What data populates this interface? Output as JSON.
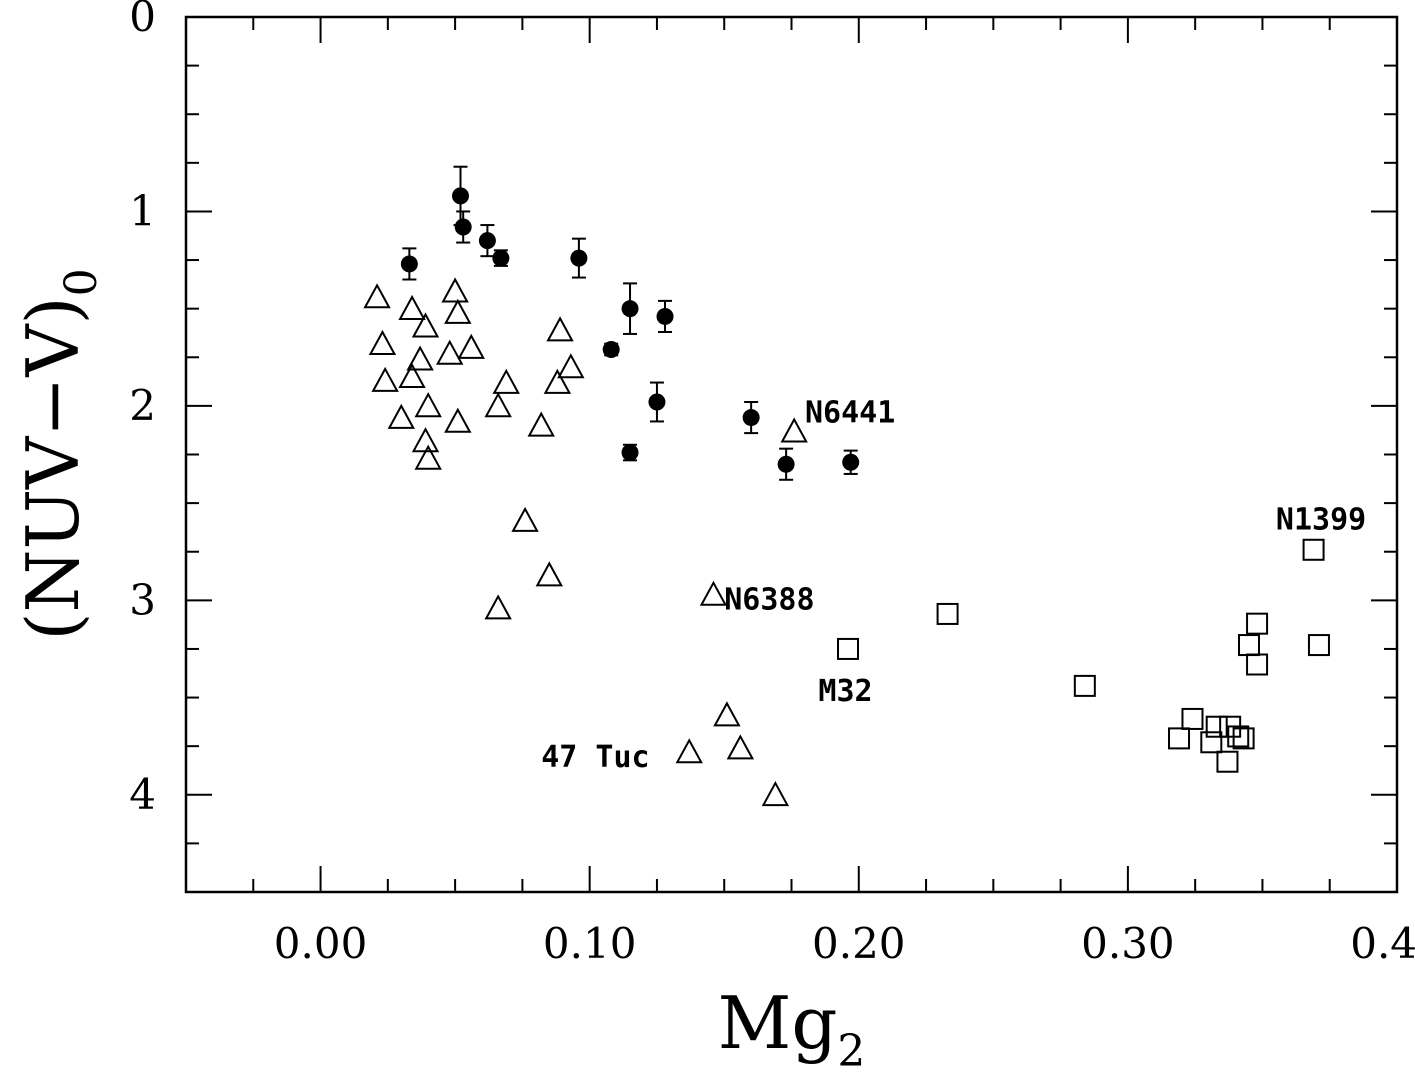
{
  "chart_data": {
    "type": "scatter",
    "xlabel": {
      "main": "Mg",
      "sub": "2"
    },
    "ylabel": {
      "main": "(NUV−V)",
      "sub": "0"
    },
    "xlim": [
      -0.05,
      0.4
    ],
    "ylim": [
      4.5,
      0
    ],
    "x_ticks": [
      {
        "value": 0.0,
        "label": "0.00"
      },
      {
        "value": 0.1,
        "label": "0.10"
      },
      {
        "value": 0.2,
        "label": "0.20"
      },
      {
        "value": 0.3,
        "label": "0.30"
      },
      {
        "value": 0.4,
        "label": "0.40"
      }
    ],
    "y_ticks": [
      {
        "value": 0,
        "label": "0"
      },
      {
        "value": 1,
        "label": "1"
      },
      {
        "value": 2,
        "label": "2"
      },
      {
        "value": 3,
        "label": "3"
      },
      {
        "value": 4,
        "label": "4"
      }
    ],
    "x_minor_step": 0.025,
    "y_minor_step": 0.25,
    "grid": false,
    "series": [
      {
        "marker": "filled-circle-errorbar",
        "points": [
          {
            "x": 0.033,
            "y": 1.27,
            "err": 0.08
          },
          {
            "x": 0.052,
            "y": 0.92,
            "err": 0.15
          },
          {
            "x": 0.053,
            "y": 1.08,
            "err": 0.08
          },
          {
            "x": 0.062,
            "y": 1.15,
            "err": 0.08
          },
          {
            "x": 0.067,
            "y": 1.24,
            "err": 0.04
          },
          {
            "x": 0.096,
            "y": 1.24,
            "err": 0.1
          },
          {
            "x": 0.108,
            "y": 1.71,
            "err": 0.03
          },
          {
            "x": 0.115,
            "y": 1.5,
            "err": 0.13
          },
          {
            "x": 0.128,
            "y": 1.54,
            "err": 0.08
          },
          {
            "x": 0.125,
            "y": 1.98,
            "err": 0.1
          },
          {
            "x": 0.115,
            "y": 2.24,
            "err": 0.04
          },
          {
            "x": 0.16,
            "y": 2.06,
            "err": 0.08
          },
          {
            "x": 0.173,
            "y": 2.3,
            "err": 0.08
          },
          {
            "x": 0.197,
            "y": 2.29,
            "err": 0.06
          }
        ]
      },
      {
        "marker": "open-triangle",
        "points": [
          {
            "x": 0.021,
            "y": 1.45
          },
          {
            "x": 0.023,
            "y": 1.69
          },
          {
            "x": 0.024,
            "y": 1.88
          },
          {
            "x": 0.03,
            "y": 2.07
          },
          {
            "x": 0.034,
            "y": 1.51
          },
          {
            "x": 0.034,
            "y": 1.86
          },
          {
            "x": 0.037,
            "y": 1.77
          },
          {
            "x": 0.039,
            "y": 1.6
          },
          {
            "x": 0.04,
            "y": 2.01
          },
          {
            "x": 0.039,
            "y": 2.19
          },
          {
            "x": 0.04,
            "y": 2.28
          },
          {
            "x": 0.048,
            "y": 1.74
          },
          {
            "x": 0.05,
            "y": 1.42
          },
          {
            "x": 0.051,
            "y": 1.53
          },
          {
            "x": 0.051,
            "y": 2.09
          },
          {
            "x": 0.056,
            "y": 1.71
          },
          {
            "x": 0.066,
            "y": 2.01
          },
          {
            "x": 0.069,
            "y": 1.89
          },
          {
            "x": 0.066,
            "y": 3.05
          },
          {
            "x": 0.076,
            "y": 2.6
          },
          {
            "x": 0.082,
            "y": 2.11
          },
          {
            "x": 0.085,
            "y": 2.88
          },
          {
            "x": 0.088,
            "y": 1.89
          },
          {
            "x": 0.089,
            "y": 1.62
          },
          {
            "x": 0.093,
            "y": 1.81
          },
          {
            "x": 0.137,
            "y": 3.79
          },
          {
            "x": 0.146,
            "y": 2.98
          },
          {
            "x": 0.151,
            "y": 3.6
          },
          {
            "x": 0.156,
            "y": 3.77
          },
          {
            "x": 0.169,
            "y": 4.01
          },
          {
            "x": 0.176,
            "y": 2.14
          }
        ]
      },
      {
        "marker": "open-square",
        "points": [
          {
            "x": 0.196,
            "y": 3.25
          },
          {
            "x": 0.233,
            "y": 3.07
          },
          {
            "x": 0.284,
            "y": 3.44
          },
          {
            "x": 0.319,
            "y": 3.71
          },
          {
            "x": 0.324,
            "y": 3.61
          },
          {
            "x": 0.331,
            "y": 3.73
          },
          {
            "x": 0.333,
            "y": 3.65
          },
          {
            "x": 0.337,
            "y": 3.83
          },
          {
            "x": 0.338,
            "y": 3.65
          },
          {
            "x": 0.341,
            "y": 3.7
          },
          {
            "x": 0.343,
            "y": 3.71
          },
          {
            "x": 0.345,
            "y": 3.23
          },
          {
            "x": 0.348,
            "y": 3.12
          },
          {
            "x": 0.348,
            "y": 3.33
          },
          {
            "x": 0.369,
            "y": 2.74
          },
          {
            "x": 0.371,
            "y": 3.23
          }
        ]
      }
    ],
    "annotations": [
      {
        "text": "N6441",
        "x": 0.18,
        "y": 2.03
      },
      {
        "text": "N1399",
        "x": 0.355,
        "y": 2.58
      },
      {
        "text": "N6388",
        "x": 0.15,
        "y": 2.99
      },
      {
        "text": "M32",
        "x": 0.185,
        "y": 3.46
      },
      {
        "text": "47 Tuc",
        "x": 0.082,
        "y": 3.8
      }
    ]
  }
}
